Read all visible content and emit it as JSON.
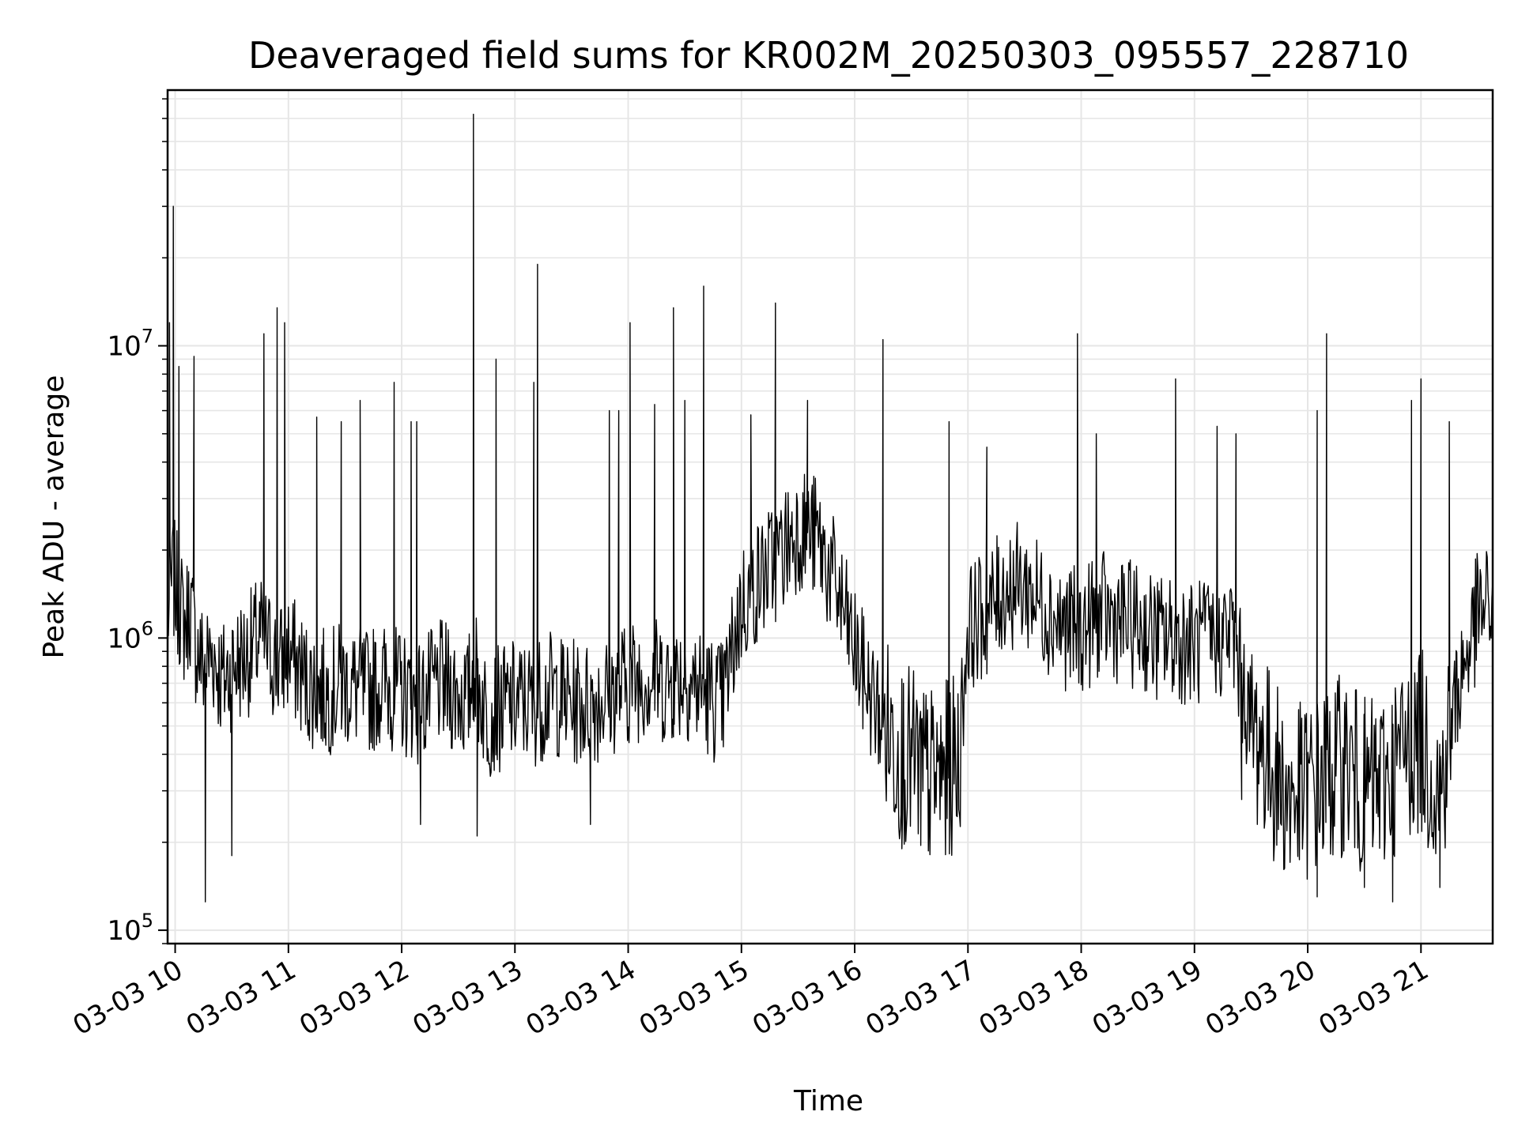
{
  "chart_data": {
    "type": "line",
    "title": "Deaveraged field sums for KR002M_20250303_095557_228710",
    "xlabel": "Time",
    "ylabel": "Peak ADU - average",
    "yscale": "log",
    "ylim": [
      90000,
      75000000
    ],
    "y_ticks": [
      {
        "value": 100000,
        "base": "10",
        "exp": "5"
      },
      {
        "value": 1000000,
        "base": "10",
        "exp": "6"
      },
      {
        "value": 10000000,
        "base": "10",
        "exp": "7"
      }
    ],
    "xlim": [
      "2025-03-03 09:56",
      "2025-03-03 21:38"
    ],
    "x_ticks": [
      {
        "time": "2025-03-03 10:00",
        "label": "03-03 10"
      },
      {
        "time": "2025-03-03 11:00",
        "label": "03-03 11"
      },
      {
        "time": "2025-03-03 12:00",
        "label": "03-03 12"
      },
      {
        "time": "2025-03-03 13:00",
        "label": "03-03 13"
      },
      {
        "time": "2025-03-03 14:00",
        "label": "03-03 14"
      },
      {
        "time": "2025-03-03 15:00",
        "label": "03-03 15"
      },
      {
        "time": "2025-03-03 16:00",
        "label": "03-03 16"
      },
      {
        "time": "2025-03-03 17:00",
        "label": "03-03 17"
      },
      {
        "time": "2025-03-03 18:00",
        "label": "03-03 18"
      },
      {
        "time": "2025-03-03 19:00",
        "label": "03-03 19"
      },
      {
        "time": "2025-03-03 20:00",
        "label": "03-03 20"
      },
      {
        "time": "2025-03-03 21:00",
        "label": "03-03 21"
      }
    ],
    "grid": true,
    "line_color": "#000000",
    "grid_color": "#e6e6e6",
    "series": [
      {
        "time": [
          "2025-03-03 09:56",
          "2025-03-03 09:59",
          "2025-03-03 10:00",
          "2025-03-03 10:05",
          "2025-03-03 10:08",
          "2025-03-03 10:10",
          "2025-03-03 10:15",
          "2025-03-03 10:20",
          "2025-03-03 10:25",
          "2025-03-03 10:30",
          "2025-03-03 10:35",
          "2025-03-03 10:40",
          "2025-03-03 10:45",
          "2025-03-03 10:50",
          "2025-03-03 10:55",
          "2025-03-03 11:00",
          "2025-03-03 11:10",
          "2025-03-03 11:20",
          "2025-03-03 11:30",
          "2025-03-03 11:40",
          "2025-03-03 11:50",
          "2025-03-03 12:00",
          "2025-03-03 12:10",
          "2025-03-03 12:20",
          "2025-03-03 12:30",
          "2025-03-03 12:35",
          "2025-03-03 12:38",
          "2025-03-03 12:45",
          "2025-03-03 13:00",
          "2025-03-03 13:10",
          "2025-03-03 13:20",
          "2025-03-03 13:30",
          "2025-03-03 13:40",
          "2025-03-03 13:50",
          "2025-03-03 14:00",
          "2025-03-03 14:10",
          "2025-03-03 14:20",
          "2025-03-03 14:30",
          "2025-03-03 14:40",
          "2025-03-03 14:50",
          "2025-03-03 15:00",
          "2025-03-03 15:10",
          "2025-03-03 15:20",
          "2025-03-03 15:30",
          "2025-03-03 15:40",
          "2025-03-03 15:50",
          "2025-03-03 16:00",
          "2025-03-03 16:10",
          "2025-03-03 16:20",
          "2025-03-03 16:30",
          "2025-03-03 16:40",
          "2025-03-03 16:50",
          "2025-03-03 16:55",
          "2025-03-03 17:00",
          "2025-03-03 17:10",
          "2025-03-03 17:20",
          "2025-03-03 17:30",
          "2025-03-03 17:40",
          "2025-03-03 17:50",
          "2025-03-03 18:00",
          "2025-03-03 18:10",
          "2025-03-03 18:20",
          "2025-03-03 18:30",
          "2025-03-03 18:40",
          "2025-03-03 18:50",
          "2025-03-03 19:00",
          "2025-03-03 19:10",
          "2025-03-03 19:20",
          "2025-03-03 19:30",
          "2025-03-03 19:40",
          "2025-03-03 19:50",
          "2025-03-03 20:00",
          "2025-03-03 20:10",
          "2025-03-03 20:20",
          "2025-03-03 20:30",
          "2025-03-03 20:40",
          "2025-03-03 20:50",
          "2025-03-03 21:00",
          "2025-03-03 21:10",
          "2025-03-03 21:20",
          "2025-03-03 21:30",
          "2025-03-03 21:38"
        ],
        "values": [
          1200000,
          1600000,
          1500000,
          1100000,
          1300000,
          1000000,
          800000,
          900000,
          700000,
          800000,
          850000,
          900000,
          1000000,
          900000,
          800000,
          900000,
          700000,
          650000,
          700000,
          650000,
          700000,
          650000,
          600000,
          700000,
          650000,
          600000,
          800000,
          550000,
          600000,
          600000,
          650000,
          600000,
          600000,
          650000,
          700000,
          750000,
          700000,
          750000,
          650000,
          600000,
          1300000,
          1600000,
          1900000,
          2400000,
          2200000,
          1500000,
          900000,
          600000,
          450000,
          380000,
          330000,
          350000,
          380000,
          1100000,
          1200000,
          1500000,
          1500000,
          1300000,
          1100000,
          1050000,
          1200000,
          1150000,
          1100000,
          1000000,
          1000000,
          950000,
          1000000,
          1050000,
          500000,
          380000,
          280000,
          300000,
          330000,
          380000,
          300000,
          320000,
          400000,
          450000,
          300000,
          700000,
          1200000,
          1300000
        ]
      }
    ],
    "spikes": [
      {
        "time": "2025-03-03 09:57",
        "value": 12000000
      },
      {
        "time": "2025-03-03 09:59",
        "value": 30000000
      },
      {
        "time": "2025-03-03 10:02",
        "value": 8500000
      },
      {
        "time": "2025-03-03 10:10",
        "value": 9200000
      },
      {
        "time": "2025-03-03 10:47",
        "value": 11000000
      },
      {
        "time": "2025-03-03 10:54",
        "value": 13500000
      },
      {
        "time": "2025-03-03 10:58",
        "value": 12000000
      },
      {
        "time": "2025-03-03 11:15",
        "value": 5700000
      },
      {
        "time": "2025-03-03 11:28",
        "value": 5500000
      },
      {
        "time": "2025-03-03 11:38",
        "value": 6500000
      },
      {
        "time": "2025-03-03 11:56",
        "value": 7500000
      },
      {
        "time": "2025-03-03 12:05",
        "value": 5500000
      },
      {
        "time": "2025-03-03 12:08",
        "value": 5500000
      },
      {
        "time": "2025-03-03 12:38",
        "value": 62000000
      },
      {
        "time": "2025-03-03 12:50",
        "value": 9000000
      },
      {
        "time": "2025-03-03 13:10",
        "value": 7500000
      },
      {
        "time": "2025-03-03 13:12",
        "value": 19000000
      },
      {
        "time": "2025-03-03 13:50",
        "value": 6000000
      },
      {
        "time": "2025-03-03 13:55",
        "value": 6000000
      },
      {
        "time": "2025-03-03 14:01",
        "value": 12000000
      },
      {
        "time": "2025-03-03 14:14",
        "value": 6300000
      },
      {
        "time": "2025-03-03 14:24",
        "value": 13500000
      },
      {
        "time": "2025-03-03 14:30",
        "value": 6500000
      },
      {
        "time": "2025-03-03 14:40",
        "value": 16000000
      },
      {
        "time": "2025-03-03 15:05",
        "value": 5800000
      },
      {
        "time": "2025-03-03 15:18",
        "value": 14000000
      },
      {
        "time": "2025-03-03 15:35",
        "value": 6500000
      },
      {
        "time": "2025-03-03 16:15",
        "value": 10500000
      },
      {
        "time": "2025-03-03 16:50",
        "value": 5500000
      },
      {
        "time": "2025-03-03 17:10",
        "value": 4500000
      },
      {
        "time": "2025-03-03 17:58",
        "value": 11000000
      },
      {
        "time": "2025-03-03 18:08",
        "value": 5000000
      },
      {
        "time": "2025-03-03 18:50",
        "value": 7700000
      },
      {
        "time": "2025-03-03 19:12",
        "value": 5300000
      },
      {
        "time": "2025-03-03 19:22",
        "value": 5000000
      },
      {
        "time": "2025-03-03 20:05",
        "value": 6000000
      },
      {
        "time": "2025-03-03 20:10",
        "value": 11000000
      },
      {
        "time": "2025-03-03 20:55",
        "value": 6500000
      },
      {
        "time": "2025-03-03 21:00",
        "value": 7700000
      },
      {
        "time": "2025-03-03 21:15",
        "value": 5500000
      }
    ],
    "dips": [
      {
        "time": "2025-03-03 10:16",
        "value": 125000
      },
      {
        "time": "2025-03-03 10:30",
        "value": 180000
      },
      {
        "time": "2025-03-03 12:10",
        "value": 230000
      },
      {
        "time": "2025-03-03 12:40",
        "value": 210000
      },
      {
        "time": "2025-03-03 13:40",
        "value": 230000
      },
      {
        "time": "2025-03-03 16:25",
        "value": 190000
      },
      {
        "time": "2025-03-03 16:35",
        "value": 195000
      },
      {
        "time": "2025-03-03 19:25",
        "value": 280000
      },
      {
        "time": "2025-03-03 20:05",
        "value": 130000
      },
      {
        "time": "2025-03-03 20:30",
        "value": 140000
      },
      {
        "time": "2025-03-03 20:45",
        "value": 125000
      },
      {
        "time": "2025-03-03 21:10",
        "value": 140000
      }
    ]
  }
}
